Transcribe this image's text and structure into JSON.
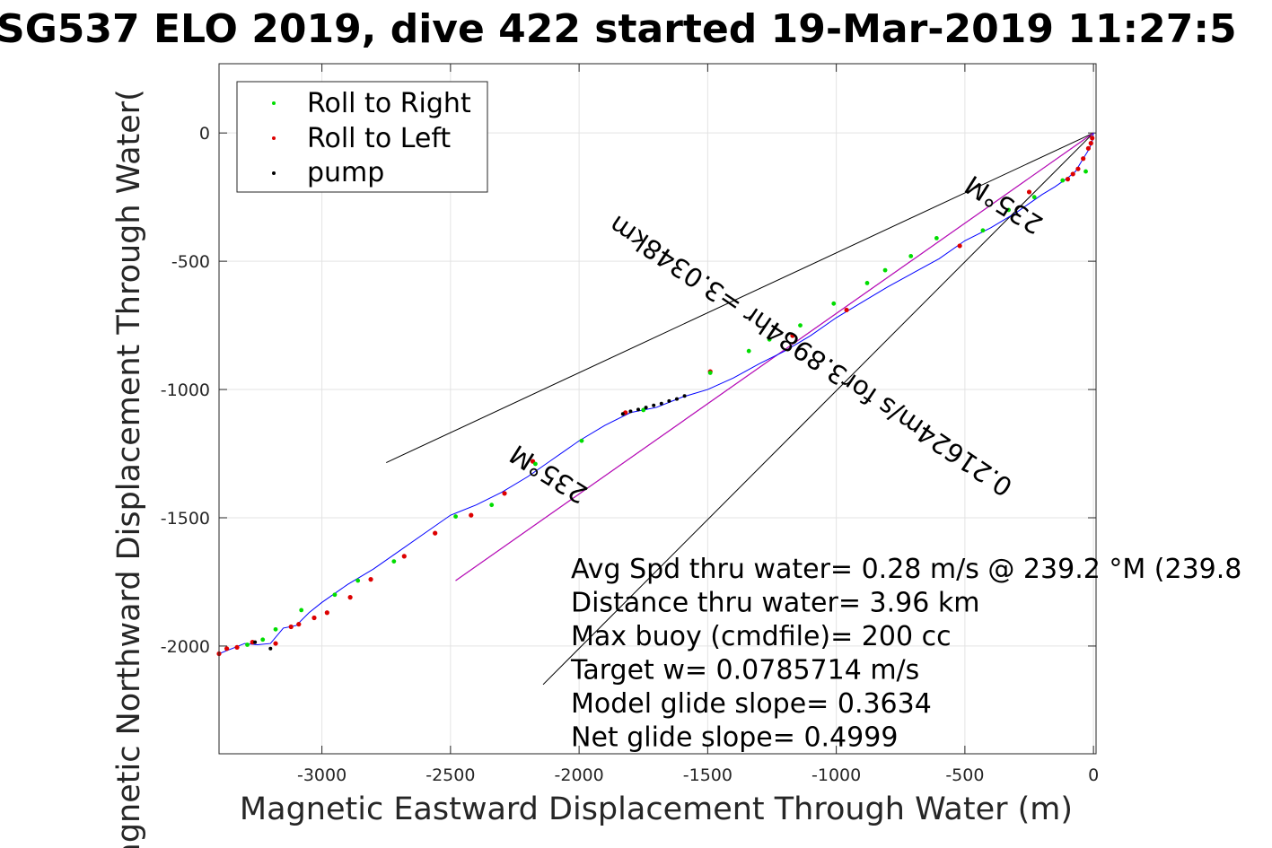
{
  "chart_data": {
    "type": "scatter",
    "title": "SG537 ELO 2019, dive 422 started 19-Mar-2019 11:27:5",
    "xlabel": "Magnetic Eastward Displacement Through Water (m)",
    "ylabel": "Magnetic Northward Displacement Through Water(",
    "xlim": [
      -3400,
      10
    ],
    "ylim": [
      -2420,
      270
    ],
    "x_ticks": [
      -3000,
      -2500,
      -2000,
      -1500,
      -1000,
      -500,
      0
    ],
    "y_ticks": [
      -2000,
      -1500,
      -1000,
      -500,
      0
    ],
    "x_tick_labels": [
      "-3000",
      "-2500",
      "-2000",
      "-1500",
      "-1000",
      "-500",
      "0"
    ],
    "y_tick_labels": [
      "-2000",
      "-1500",
      "-1000",
      "-500",
      "0"
    ],
    "grid": true,
    "legend_position": "top-left",
    "legend": [
      {
        "label": "Roll to Right",
        "color": "#00dd00"
      },
      {
        "label": "Roll to Left",
        "color": "#dd0000"
      },
      {
        "label": "pump",
        "color": "#000000"
      }
    ],
    "track": {
      "color": "#0000ff",
      "x": [
        0,
        -5,
        -15,
        -40,
        -70,
        -100,
        -150,
        -200,
        -250,
        -300,
        -400,
        -500,
        -600,
        -700,
        -800,
        -900,
        -1000,
        -1100,
        -1200,
        -1300,
        -1400,
        -1500,
        -1600,
        -1700,
        -1800,
        -1900,
        -2000,
        -2100,
        -2200,
        -2300,
        -2400,
        -2500,
        -2600,
        -2700,
        -2800,
        -2900,
        -3000,
        -3050,
        -3100,
        -3150,
        -3200,
        -3250,
        -3300,
        -3350,
        -3400
      ],
      "y": [
        0,
        -30,
        -60,
        -100,
        -150,
        -175,
        -210,
        -240,
        -275,
        -310,
        -370,
        -420,
        -490,
        -545,
        -600,
        -660,
        -720,
        -790,
        -850,
        -900,
        -955,
        -1000,
        -1030,
        -1070,
        -1090,
        -1140,
        -1200,
        -1270,
        -1340,
        -1400,
        -1450,
        -1490,
        -1560,
        -1630,
        -1700,
        -1760,
        -1830,
        -1870,
        -1920,
        -1930,
        -1990,
        -1995,
        -1990,
        -2010,
        -2030
      ]
    },
    "roll_right_points": {
      "x": [
        -30,
        -120,
        -230,
        -330,
        -430,
        -610,
        -710,
        -810,
        -880,
        -1010,
        -1140,
        -1260,
        -1340,
        -1490,
        -1750,
        -1990,
        -2170,
        -2340,
        -2480,
        -2720,
        -2860,
        -2950,
        -3080,
        -3180,
        -3230,
        -3290
      ],
      "y": [
        -150,
        -185,
        -250,
        -300,
        -380,
        -410,
        -480,
        -535,
        -585,
        -665,
        -750,
        -805,
        -850,
        -935,
        -1080,
        -1200,
        -1290,
        -1450,
        -1495,
        -1670,
        -1745,
        -1800,
        -1860,
        -1935,
        -1975,
        -1995
      ]
    },
    "roll_left_points": {
      "x": [
        -5,
        -10,
        -20,
        -40,
        -60,
        -80,
        -100,
        -250,
        -520,
        -960,
        -1170,
        -1490,
        -1820,
        -2180,
        -2290,
        -2420,
        -2560,
        -2680,
        -2810,
        -2890,
        -2980,
        -3030,
        -3090,
        -3120,
        -3180,
        -3270,
        -3330,
        -3370,
        -3400
      ],
      "y": [
        -20,
        -40,
        -60,
        -100,
        -140,
        -160,
        -180,
        -230,
        -440,
        -690,
        -790,
        -930,
        -1090,
        -1280,
        -1405,
        -1490,
        -1560,
        -1650,
        -1740,
        -1810,
        -1870,
        -1890,
        -1915,
        -1925,
        -1990,
        -1985,
        -2005,
        -2010,
        -2030
      ]
    },
    "pump_points": {
      "x": [
        -1830,
        -1800,
        -1770,
        -1740,
        -1710,
        -1680,
        -1650,
        -1620,
        -1590,
        -3200,
        -3260
      ],
      "y": [
        -1095,
        -1085,
        -1078,
        -1070,
        -1062,
        -1055,
        -1045,
        -1037,
        -1025,
        -2010,
        -1985
      ]
    },
    "reference_lines": [
      {
        "color": "#000000",
        "x": [
          0,
          -2750
        ],
        "y": [
          0,
          -1285
        ]
      },
      {
        "color": "#000000",
        "x": [
          0,
          -2140
        ],
        "y": [
          0,
          -2150
        ]
      },
      {
        "color": "#000000",
        "x": [
          0,
          -2480
        ],
        "y": [
          0,
          -1745
        ]
      },
      {
        "color": "#cc00cc",
        "x": [
          0,
          -2480
        ],
        "y": [
          0,
          -1745
        ]
      }
    ],
    "diagonal_labels": [
      {
        "text": "235°M",
        "x": -330,
        "y": -250,
        "rotation": 212
      },
      {
        "text": "0.21624m/s for3.8984hr =3.0348km",
        "x": -1080,
        "y": -840,
        "rotation": 214
      },
      {
        "text": "235°M",
        "x": -2100,
        "y": -1300,
        "rotation": 212
      }
    ],
    "annotations": [
      "Avg Spd thru water=  0.28 m/s @ 239.2 °M (239.8",
      "Distance thru water=  3.96 km",
      "Max buoy (cmdfile)= 200 cc",
      "Target w= 0.0785714 m/s",
      "Model glide slope= 0.3634",
      "Net glide slope= 0.4999"
    ]
  }
}
